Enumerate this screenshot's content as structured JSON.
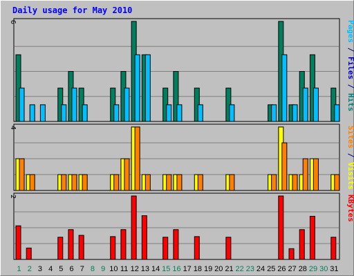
{
  "chart_data": {
    "type": "bar",
    "title": "Daily usage for May 2010",
    "categories": [
      "1",
      "2",
      "3",
      "4",
      "5",
      "6",
      "7",
      "8",
      "9",
      "10",
      "11",
      "12",
      "13",
      "14",
      "15",
      "16",
      "17",
      "18",
      "19",
      "20",
      "21",
      "22",
      "23",
      "24",
      "25",
      "26",
      "27",
      "28",
      "29",
      "30",
      "31"
    ],
    "weekend_days": [
      "1",
      "2",
      "8",
      "9",
      "15",
      "16",
      "22",
      "23",
      "29",
      "30"
    ],
    "panels": [
      {
        "id": "hits",
        "ylim": [
          0,
          6
        ],
        "ytick": "6",
        "ylabel_parts": [
          {
            "text": "Pages",
            "color": "#00c0ff"
          },
          {
            "text": " / ",
            "color": "#000080"
          },
          {
            "text": "Files",
            "color": "#0000c0"
          },
          {
            "text": " / ",
            "color": "#000080"
          },
          {
            "text": "Hits",
            "color": "#008080"
          }
        ],
        "series": [
          {
            "name": "Hits",
            "color": "#007f5f",
            "values": [
              4,
              0,
              0,
              0,
              2,
              3,
              2,
              0,
              0,
              2,
              3,
              6,
              4,
              0,
              2,
              3,
              0,
              2,
              0,
              0,
              2,
              0,
              0,
              0,
              1,
              6,
              1,
              3,
              4,
              0,
              2
            ]
          },
          {
            "name": "Files",
            "color": "#00c0ff",
            "values": [
              2,
              1,
              1,
              0,
              1,
              2,
              1,
              0,
              0,
              1,
              2,
              4,
              4,
              0,
              1,
              1,
              0,
              1,
              0,
              0,
              1,
              0,
              0,
              0,
              1,
              4,
              1,
              2,
              2,
              0,
              1
            ]
          }
        ]
      },
      {
        "id": "visits",
        "ylim": [
          0,
          4
        ],
        "ytick": "4",
        "ylabel_parts": [
          {
            "text": "Sites",
            "color": "#ff8000"
          },
          {
            "text": " / ",
            "color": "#000080"
          },
          {
            "text": "Visits",
            "color": "#ffff00"
          }
        ],
        "series": [
          {
            "name": "Visits",
            "color": "#ffff00",
            "values": [
              2,
              1,
              0,
              0,
              1,
              1,
              1,
              0,
              0,
              1,
              2,
              4,
              1,
              0,
              1,
              1,
              0,
              1,
              0,
              0,
              1,
              0,
              0,
              0,
              1,
              4,
              1,
              1,
              2,
              0,
              1
            ]
          },
          {
            "name": "Sites",
            "color": "#ff8000",
            "values": [
              2,
              1,
              0,
              0,
              1,
              1,
              1,
              0,
              0,
              1,
              2,
              4,
              1,
              0,
              1,
              1,
              0,
              1,
              0,
              0,
              1,
              0,
              0,
              0,
              1,
              3,
              1,
              2,
              2,
              0,
              1
            ]
          }
        ]
      },
      {
        "id": "kbytes",
        "ylim": [
          0,
          2
        ],
        "ytick": "2",
        "ylabel_parts": [
          {
            "text": "KBytes",
            "color": "#ff0000"
          }
        ],
        "series": [
          {
            "name": "KBytes",
            "color": "#ff0000",
            "values": [
              1.06,
              0.36,
              0,
              0,
              0.7,
              0.94,
              0.76,
              0,
              0,
              0.72,
              0.94,
              2,
              1.38,
              0,
              0.7,
              0.94,
              0,
              0.72,
              0,
              0,
              0.7,
              0,
              0,
              0,
              0,
              2,
              0.34,
              0.94,
              1.36,
              0,
              0.7
            ]
          }
        ]
      }
    ],
    "colors": {
      "background": "#c0c0c0",
      "plot_border": "#000000",
      "grid": "#808080",
      "title": "#0000ff",
      "weekday_label": "#000000",
      "weekend_label": "#00805c"
    },
    "grid": true
  }
}
